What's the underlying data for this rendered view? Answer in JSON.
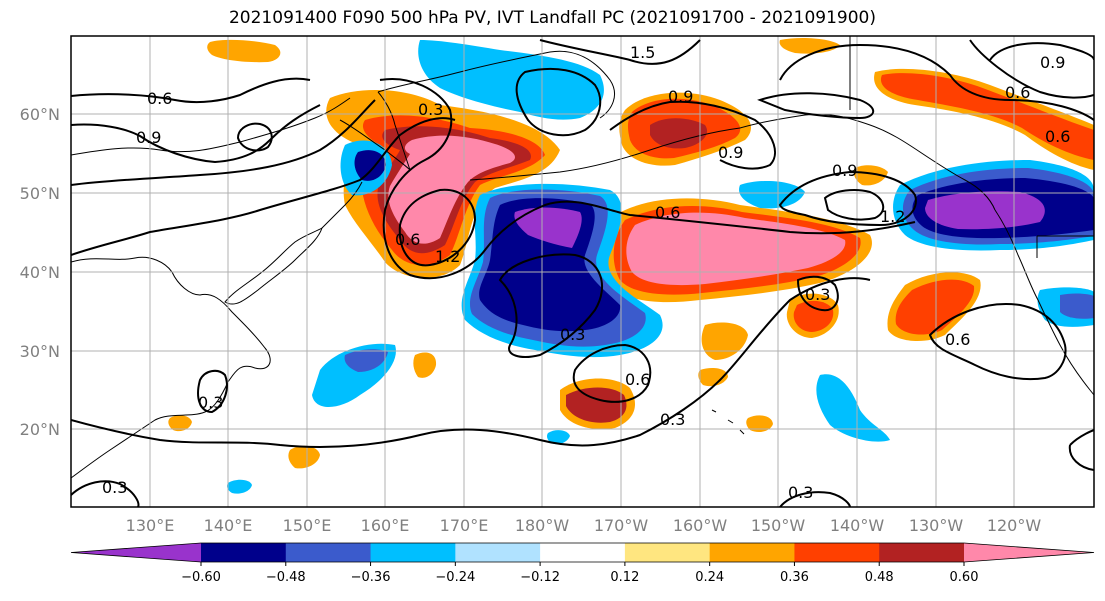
{
  "title": "2021091400 F090 500 hPa PV, IVT Landfall PC (2021091700 - 2021091900)",
  "latitude_labels": [
    "60°N",
    "50°N",
    "40°N",
    "30°N",
    "20°N"
  ],
  "longitude_labels": [
    "130°E",
    "140°E",
    "150°E",
    "160°E",
    "170°E",
    "180°W",
    "170°W",
    "160°W",
    "150°W",
    "140°W",
    "130°W",
    "120°W"
  ],
  "colorbar": {
    "tick_labels": [
      "−0.60",
      "−0.48",
      "−0.36",
      "−0.24",
      "−0.12",
      "0.12",
      "0.24",
      "0.36",
      "0.48",
      "0.60"
    ],
    "colors": [
      "#9933cc",
      "#00008b",
      "#3b5bcc",
      "#00bfff",
      "#b0e2ff",
      "#ffffff",
      "#ffe680",
      "#ffa500",
      "#ff4000",
      "#b22222",
      "#ff88aa"
    ]
  },
  "contour_labels": [
    "0.6",
    "0.9",
    "0.3",
    "0.6",
    "1.2",
    "0.9",
    "1.5",
    "0.9",
    "0.6",
    "0.9",
    "1.2",
    "0.6",
    "0.9",
    "0.6",
    "0.3",
    "0.6",
    "0.3",
    "0.6",
    "0.3",
    "0.3",
    "0.3",
    "0.3"
  ]
}
